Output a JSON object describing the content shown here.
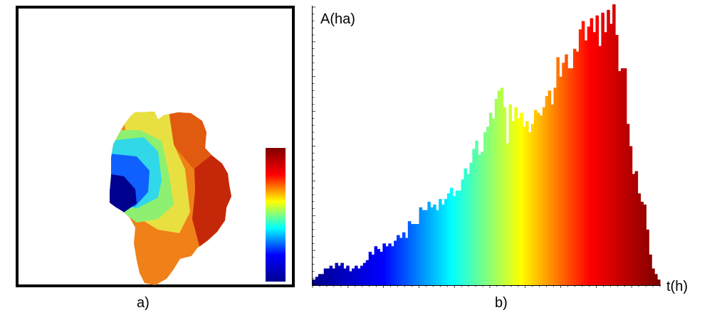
{
  "panels": {
    "a": {
      "caption": "a)",
      "colorbar": {
        "colormap": "jet",
        "colors": [
          "#00008f",
          "#0000ff",
          "#00ffff",
          "#ffff00",
          "#ff0000",
          "#800000"
        ]
      },
      "map_colors": {
        "dark_blue": "#00008f",
        "blue": "#1060ff",
        "cyan": "#30d8e8",
        "green": "#8ef070",
        "yellow": "#e8e040",
        "orange": "#f08018",
        "dark_orange": "#e05a10",
        "red": "#c42808"
      }
    },
    "b": {
      "caption": "b)"
    }
  },
  "chart_data": {
    "type": "bar",
    "title": "",
    "xlabel": "t(h)",
    "ylabel": "A(ha)",
    "x_unit": "h",
    "y_unit": "ha",
    "axis_tick_labels_shown": false,
    "grid": false,
    "colormap": "jet (dark blue to dark red along t)",
    "ylim": [
      0,
      100
    ],
    "values": [
      2,
      3,
      4,
      4,
      6,
      6,
      7,
      6,
      8,
      7,
      8,
      6,
      7,
      5,
      6,
      7,
      6,
      7,
      8,
      9,
      12,
      11,
      14,
      13,
      12,
      15,
      14,
      15,
      14,
      16,
      18,
      17,
      19,
      17,
      23,
      22,
      22,
      22,
      28,
      27,
      27,
      30,
      28,
      29,
      27,
      31,
      29,
      31,
      33,
      35,
      32,
      34,
      34,
      38,
      42,
      40,
      44,
      49,
      52,
      47,
      48,
      55,
      57,
      62,
      60,
      67,
      70,
      71,
      64,
      51,
      65,
      59,
      64,
      60,
      62,
      57,
      59,
      55,
      58,
      63,
      62,
      61,
      64,
      68,
      70,
      65,
      71,
      82,
      75,
      80,
      83,
      78,
      78,
      85,
      84,
      92,
      95,
      88,
      93,
      96,
      91,
      97,
      86,
      98,
      91,
      99,
      94,
      101,
      90,
      77,
      78,
      78,
      58,
      50,
      40,
      41,
      33,
      30,
      29,
      20,
      11,
      6,
      4,
      2
    ]
  }
}
